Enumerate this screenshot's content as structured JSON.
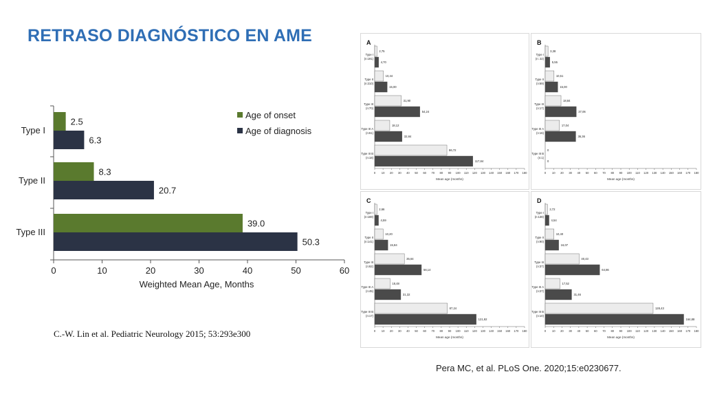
{
  "slide": {
    "title": "RETRASO DIAGNÓSTICO EN AME",
    "citation_left": "C.-W. Lin et al. Pediatric Neurology 2015; 53:293e300",
    "citation_right": "Pera MC, et al. PLoS One. 2020;15:e0230677."
  },
  "colors": {
    "title": "#2f6eb5",
    "onset": "#5a7a2e",
    "diagnosis": "#2b3345",
    "light_bar": "#ececec",
    "dark_bar": "#4a4a4a"
  },
  "chart_data": [
    {
      "type": "bar",
      "orientation": "horizontal",
      "categories": [
        "Type I",
        "Type II",
        "Type III"
      ],
      "series": [
        {
          "name": "Age of onset",
          "values": [
            2.5,
            8.3,
            39.0
          ],
          "labels": [
            "2.5",
            "8.3",
            "39.0"
          ]
        },
        {
          "name": "Age of diagnosis",
          "values": [
            6.3,
            20.7,
            50.3
          ],
          "labels": [
            "6.3",
            "20.7",
            "50.3"
          ]
        }
      ],
      "xlabel": "Weighted Mean Age, Months",
      "xlim": [
        0,
        60
      ],
      "xticks": [
        "0",
        "10",
        "20",
        "30",
        "40",
        "50",
        "60"
      ],
      "legend_position": "top-right"
    },
    {
      "type": "bar",
      "orientation": "horizontal",
      "panel": "A",
      "groups": [
        "Type I (n:191)",
        "Type II (n:210)",
        "Type III (n:70)",
        "Type III A (n:61)",
        "Type III B (n:18)"
      ],
      "onset_values": [
        2.75,
        10.44,
        31.9,
        18.12,
        86.72
      ],
      "diagnosis_values": [
        4.7,
        15.0,
        54.24,
        32.84,
        117.84
      ],
      "onset_labels": [
        "2,75",
        "10,44",
        "31,90",
        "18,12",
        "86,72"
      ],
      "diagnosis_labels": [
        "4,70",
        "15,00",
        "54,24",
        "32,84",
        "117,84"
      ],
      "xlabel": "Mean age (months)",
      "xlim": [
        0,
        180
      ],
      "xticks": [
        "0",
        "10",
        "20",
        "30",
        "40",
        "50",
        "60",
        "70",
        "80",
        "90",
        "100",
        "110",
        "120",
        "130",
        "140",
        "150",
        "160",
        "170",
        "180"
      ]
    },
    {
      "type": "bar",
      "orientation": "horizontal",
      "panel": "B",
      "groups": [
        "Type I (n: 22)",
        "Type II (n:69)",
        "Type III (n:17)",
        "Type III A (n:16)",
        "Type III B (n:1)"
      ],
      "onset_values": [
        3.38,
        10.51,
        18.84,
        17.04,
        0
      ],
      "diagnosis_values": [
        5.55,
        15.0,
        37.06,
        36.36,
        0
      ],
      "onset_labels": [
        "3,38",
        "10,51",
        "18,84",
        "17,04",
        "0"
      ],
      "diagnosis_labels": [
        "5,55",
        "15,00",
        "37,06",
        "36,36",
        "0"
      ],
      "xlabel": "Mean age (months)",
      "xlim": [
        0,
        180
      ],
      "xticks": [
        "0",
        "10",
        "20",
        "30",
        "40",
        "50",
        "60",
        "70",
        "80",
        "90",
        "100",
        "110",
        "120",
        "130",
        "140",
        "150",
        "160",
        "170",
        "180"
      ]
    },
    {
      "type": "bar",
      "orientation": "horizontal",
      "panel": "C",
      "groups": [
        "Type I (n:169)",
        "Type II (n:141)",
        "Type III (n:62)",
        "Type III A (n:45)",
        "Type III B (n:17)"
      ],
      "onset_values": [
        2.66,
        10.2,
        35.64,
        18.48,
        87.24
      ],
      "diagnosis_values": [
        4.59,
        15.84,
        56.14,
        31.32,
        121.92
      ],
      "onset_labels": [
        "2,66",
        "10,20",
        "35,64",
        "18,48",
        "87,24"
      ],
      "diagnosis_labels": [
        "4,59",
        "15,84",
        "56,14",
        "31,32",
        "121,92"
      ],
      "xlabel": "Mean age (months)",
      "xlim": [
        0,
        180
      ],
      "xticks": [
        "0",
        "10",
        "20",
        "30",
        "40",
        "50",
        "60",
        "70",
        "80",
        "90",
        "100",
        "110",
        "120",
        "130",
        "140",
        "150",
        "160",
        "170",
        "180"
      ]
    },
    {
      "type": "bar",
      "orientation": "horizontal",
      "panel": "D",
      "groups": [
        "Type I (n:138)",
        "Type II (n:90)",
        "Type III (n:37)",
        "Type III A (n:27)",
        "Type III B (n:10)"
      ],
      "onset_values": [
        2.72,
        10.4,
        40.43,
        17.52,
        128.43
      ],
      "diagnosis_values": [
        4.54,
        16.07,
        64.86,
        31.46,
        164.88
      ],
      "onset_labels": [
        "2,72",
        "10,40",
        "40,43",
        "17,52",
        "128,43"
      ],
      "diagnosis_labels": [
        "4,54",
        "16,07",
        "64,86",
        "31,46",
        "164,88"
      ],
      "xlabel": "Mean age (months)",
      "xlim": [
        0,
        180
      ],
      "xticks": [
        "0",
        "10",
        "20",
        "30",
        "40",
        "50",
        "60",
        "70",
        "80",
        "90",
        "100",
        "110",
        "120",
        "130",
        "140",
        "150",
        "160",
        "170",
        "180"
      ]
    }
  ]
}
